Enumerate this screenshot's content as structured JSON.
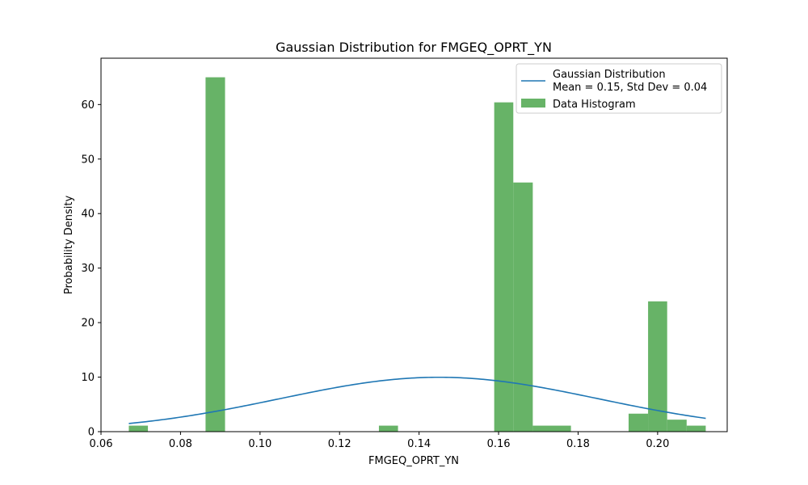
{
  "chart_data": {
    "type": "bar",
    "title": "Gaussian Distribution for FMGEQ_OPRT_YN",
    "xlabel": "FMGEQ_OPRT_YN",
    "ylabel": "Probability Density",
    "xlim": [
      0.06,
      0.2175
    ],
    "ylim": [
      0,
      68.5
    ],
    "xticks": [
      0.06,
      0.08,
      0.1,
      0.12,
      0.14,
      0.16,
      0.18,
      0.2
    ],
    "xtick_labels": [
      "0.06",
      "0.08",
      "0.10",
      "0.12",
      "0.14",
      "0.16",
      "0.18",
      "0.20"
    ],
    "yticks": [
      0,
      10,
      20,
      30,
      40,
      50,
      60
    ],
    "ytick_labels": [
      "0",
      "10",
      "20",
      "30",
      "40",
      "50",
      "60"
    ],
    "grid": false,
    "legend_position": "top-right",
    "histogram": {
      "name": "Data Histogram",
      "color": "#4ca64c",
      "bins": [
        {
          "x0": 0.067,
          "x1": 0.0718,
          "y": 1.1
        },
        {
          "x0": 0.0863,
          "x1": 0.0912,
          "y": 65.0
        },
        {
          "x0": 0.1299,
          "x1": 0.1347,
          "y": 1.1
        },
        {
          "x0": 0.1589,
          "x1": 0.1637,
          "y": 60.4
        },
        {
          "x0": 0.1637,
          "x1": 0.1686,
          "y": 45.7
        },
        {
          "x0": 0.1686,
          "x1": 0.1734,
          "y": 1.1
        },
        {
          "x0": 0.1734,
          "x1": 0.1782,
          "y": 1.1
        },
        {
          "x0": 0.1927,
          "x1": 0.1976,
          "y": 3.3
        },
        {
          "x0": 0.1976,
          "x1": 0.2024,
          "y": 23.9
        },
        {
          "x0": 0.2024,
          "x1": 0.2073,
          "y": 2.2
        },
        {
          "x0": 0.2073,
          "x1": 0.2121,
          "y": 1.1
        }
      ]
    },
    "gaussian": {
      "name_line1": "Gaussian Distribution",
      "name_line2": "Mean = 0.15, Std Dev = 0.04",
      "color": "#1f77b4",
      "mean": 0.145,
      "std": 0.04,
      "x_start": 0.067,
      "x_end": 0.2121
    }
  }
}
